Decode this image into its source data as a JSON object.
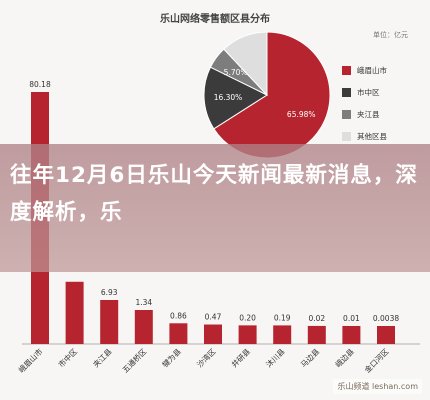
{
  "chart_data": [
    {
      "type": "bar",
      "title": "乐山网络零售额区县分布",
      "unit": "单位：亿元",
      "categories": [
        "峨眉山市",
        "市中区",
        "夹江县",
        "五通桥区",
        "犍为县",
        "沙湾区",
        "井研县",
        "沐川县",
        "马边县",
        "峨边县",
        "金口河区"
      ],
      "value_labels": [
        "80.18",
        "",
        "6.93",
        "1.34",
        "0.86",
        "0.47",
        "0.20",
        "0.19",
        "0.02",
        "0.01",
        "0.0038"
      ],
      "values": [
        80.18,
        19.8,
        6.93,
        1.34,
        0.86,
        0.47,
        0.2,
        0.19,
        0.02,
        0.01,
        0.0038
      ],
      "ylim": [
        0,
        84
      ],
      "color": "#b5242f"
    },
    {
      "type": "pie",
      "labels": [
        "峨眉山市",
        "市中区",
        "夹江县",
        "其他区县"
      ],
      "values": [
        65.98,
        16.3,
        5.7,
        12.02
      ],
      "slice_labels": [
        "65.98%",
        "16.30%",
        "5.70%",
        ""
      ],
      "colors": [
        "#b5242f",
        "#3b3b3b",
        "#7d7d7d",
        "#dedede"
      ],
      "legend_position": "right"
    }
  ],
  "banner": {
    "text": "往年12月6日乐山今天新闻最新消息，深度解析，乐"
  },
  "watermark": "乐山频道 leshan.com"
}
